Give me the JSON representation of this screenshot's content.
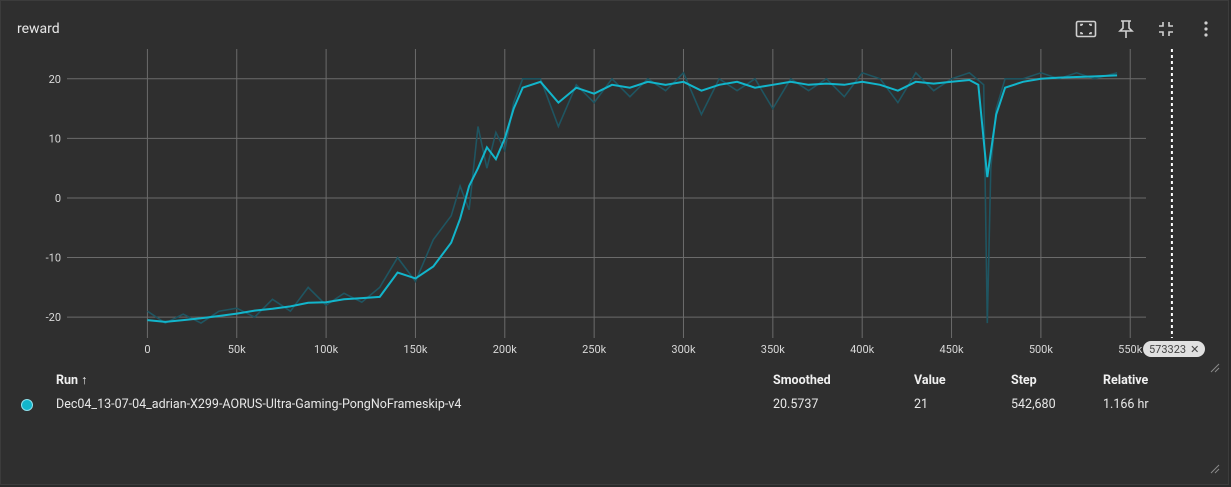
{
  "card": {
    "title": "reward"
  },
  "toolbar": {
    "icons": [
      "fit-domain-icon",
      "pin-icon",
      "collapse-icon",
      "more-vert-icon"
    ]
  },
  "colors": {
    "smoothed": "#12b5cb",
    "raw": "#1f5561",
    "grid": "#6b6b6b",
    "background": "#2f2f2f"
  },
  "chart_data": {
    "type": "line",
    "title": "reward",
    "xlabel": "",
    "ylabel": "",
    "xlim": [
      -45000,
      598000
    ],
    "ylim": [
      -23.5,
      25
    ],
    "x_ticks": [
      0,
      50000,
      100000,
      150000,
      200000,
      250000,
      300000,
      350000,
      400000,
      450000,
      500000,
      550000
    ],
    "x_tick_labels": [
      "0",
      "50k",
      "100k",
      "150k",
      "200k",
      "250k",
      "300k",
      "350k",
      "400k",
      "450k",
      "500k",
      "550k"
    ],
    "y_ticks": [
      -20,
      -10,
      0,
      10,
      20
    ],
    "y_tick_labels": [
      "-20",
      "-10",
      "0",
      "10",
      "20"
    ],
    "grid": true,
    "hover_step": 573323,
    "hover_label": "573323",
    "series": [
      {
        "name": "Dec04_13-07-04_adrian-X299-AORUS-Ultra-Gaming-PongNoFrameskip-v4",
        "smoothed": {
          "x": [
            0,
            10000,
            20000,
            30000,
            40000,
            50000,
            60000,
            70000,
            80000,
            90000,
            100000,
            110000,
            120000,
            130000,
            140000,
            150000,
            160000,
            170000,
            175000,
            180000,
            185000,
            190000,
            195000,
            200000,
            205000,
            210000,
            220000,
            230000,
            240000,
            250000,
            260000,
            270000,
            280000,
            290000,
            300000,
            310000,
            320000,
            330000,
            340000,
            350000,
            360000,
            370000,
            380000,
            390000,
            400000,
            410000,
            420000,
            430000,
            440000,
            450000,
            460000,
            465000,
            470000,
            475000,
            480000,
            490000,
            500000,
            510000,
            520000,
            530000,
            542680
          ],
          "y": [
            -20.5,
            -20.8,
            -20.5,
            -20.2,
            -19.8,
            -19.4,
            -18.9,
            -18.6,
            -18.2,
            -17.6,
            -17.5,
            -17.0,
            -16.8,
            -16.6,
            -12.5,
            -13.5,
            -11.5,
            -7.5,
            -3.5,
            2.0,
            5.0,
            8.5,
            6.5,
            10.0,
            15.0,
            18.5,
            19.5,
            16.0,
            18.5,
            17.5,
            19.0,
            18.5,
            19.5,
            19.0,
            19.5,
            18.0,
            19.0,
            19.5,
            18.5,
            19.0,
            19.5,
            19.0,
            19.2,
            19.0,
            19.5,
            19.0,
            18.0,
            19.5,
            19.2,
            19.5,
            19.8,
            19.0,
            3.5,
            14.0,
            18.5,
            19.5,
            20.0,
            20.2,
            20.3,
            20.4,
            20.5737
          ]
        },
        "raw": {
          "x": [
            0,
            10000,
            20000,
            30000,
            40000,
            50000,
            60000,
            70000,
            80000,
            90000,
            100000,
            110000,
            120000,
            130000,
            140000,
            150000,
            160000,
            170000,
            175000,
            180000,
            185000,
            190000,
            195000,
            200000,
            205000,
            210000,
            220000,
            230000,
            240000,
            250000,
            260000,
            270000,
            280000,
            290000,
            300000,
            310000,
            320000,
            330000,
            340000,
            350000,
            360000,
            370000,
            380000,
            390000,
            400000,
            410000,
            420000,
            430000,
            440000,
            450000,
            460000,
            468000,
            470000,
            472000,
            475000,
            480000,
            490000,
            500000,
            510000,
            520000,
            530000,
            542680
          ],
          "y": [
            -19,
            -21,
            -19.5,
            -21,
            -19,
            -18.5,
            -20,
            -17,
            -19,
            -15,
            -18,
            -16,
            -17.5,
            -15,
            -10,
            -14,
            -7,
            -3,
            2,
            -2,
            12,
            5,
            11,
            8,
            16,
            20,
            20,
            12,
            19,
            16,
            20,
            17,
            20,
            18,
            21,
            14,
            20,
            18,
            20,
            15,
            20,
            18,
            20,
            17,
            21,
            20,
            16,
            21,
            18,
            20,
            21,
            19,
            -21,
            5,
            15,
            20,
            20,
            21,
            20,
            21,
            20,
            21
          ]
        }
      }
    ]
  },
  "table": {
    "headers": {
      "run": "Run ↑",
      "smoothed": "Smoothed",
      "value": "Value",
      "step": "Step",
      "relative": "Relative"
    },
    "rows": [
      {
        "run": "Dec04_13-07-04_adrian-X299-AORUS-Ultra-Gaming-PongNoFrameskip-v4",
        "smoothed": "20.5737",
        "value": "21",
        "step": "542,680",
        "relative": "1.166 hr"
      }
    ]
  }
}
